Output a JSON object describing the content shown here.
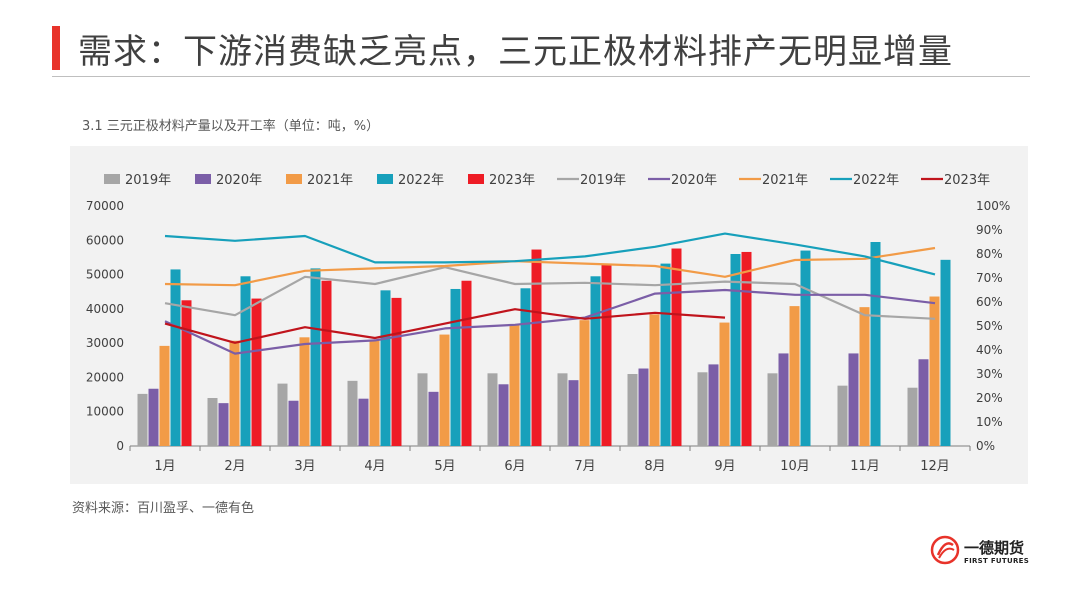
{
  "header": {
    "title": "需求：下游消费缺乏亮点，三元正极材料排产无明显增量",
    "subtitle": "3.1 三元正极材料产量以及开工率（单位：吨，%）"
  },
  "footer": {
    "source": "资料来源：百川盈孚、一德有色"
  },
  "logo": {
    "name_cn": "一德期货",
    "name_en": "FIRST FUTURES",
    "color": "#e8332a"
  },
  "chart_data": {
    "type": "bar",
    "categories": [
      "1月",
      "2月",
      "3月",
      "4月",
      "5月",
      "6月",
      "7月",
      "8月",
      "9月",
      "10月",
      "11月",
      "12月"
    ],
    "ylim_left": [
      0,
      70000
    ],
    "ylim_right": [
      0,
      100
    ],
    "left_ticks": [
      "0",
      "10000",
      "20000",
      "30000",
      "40000",
      "50000",
      "60000",
      "70000"
    ],
    "right_ticks": [
      "0%",
      "10%",
      "20%",
      "30%",
      "40%",
      "50%",
      "60%",
      "70%",
      "80%",
      "90%",
      "100%"
    ],
    "legend_position": "top",
    "grid": true,
    "bar_series": [
      {
        "name": "2019年",
        "color": "#a6a6a6",
        "values": [
          15200,
          14000,
          18200,
          19000,
          21200,
          21200,
          21200,
          21000,
          21500,
          21200,
          17600,
          17000
        ]
      },
      {
        "name": "2020年",
        "color": "#7b5ea7",
        "values": [
          16700,
          12500,
          13200,
          13800,
          15800,
          18000,
          19200,
          22600,
          23800,
          27000,
          27000,
          25300
        ]
      },
      {
        "name": "2021年",
        "color": "#f29b47",
        "values": [
          29200,
          30700,
          31700,
          31000,
          32500,
          35500,
          36700,
          38400,
          36000,
          40800,
          40500,
          43600
        ]
      },
      {
        "name": "2022年",
        "color": "#17a0bb",
        "values": [
          51500,
          49500,
          51800,
          45400,
          45800,
          46000,
          49500,
          53200,
          56000,
          57000,
          59500,
          54300
        ]
      },
      {
        "name": "2023年",
        "color": "#ee1c25",
        "values": [
          42500,
          43000,
          48200,
          43200,
          48200,
          57300,
          53000,
          57600,
          56600,
          null,
          null,
          null
        ]
      }
    ],
    "line_series": [
      {
        "name": "2019年",
        "color": "#a6a6a6",
        "values": [
          59.5,
          54.5,
          70.5,
          67.5,
          74.5,
          67.5,
          68,
          67,
          68.5,
          67.5,
          54.5,
          53
        ]
      },
      {
        "name": "2020年",
        "color": "#7b5ea7",
        "values": [
          52,
          38.5,
          42.5,
          44,
          49,
          50.5,
          53.5,
          63.5,
          65,
          63,
          63,
          59.5
        ]
      },
      {
        "name": "2021年",
        "color": "#f29b47",
        "values": [
          67.5,
          67,
          73,
          74,
          75,
          77,
          76,
          75,
          70.5,
          77.5,
          78,
          82.5
        ]
      },
      {
        "name": "2022年",
        "color": "#17a0bb",
        "values": [
          87.5,
          85.5,
          87.5,
          76.5,
          76.5,
          77,
          79,
          83,
          88.5,
          84,
          79,
          71.5
        ]
      },
      {
        "name": "2023年",
        "color": "#c0141c",
        "values": [
          51,
          43,
          49.5,
          45,
          51,
          57,
          53,
          55.5,
          53.5,
          null,
          null,
          null
        ]
      }
    ]
  }
}
